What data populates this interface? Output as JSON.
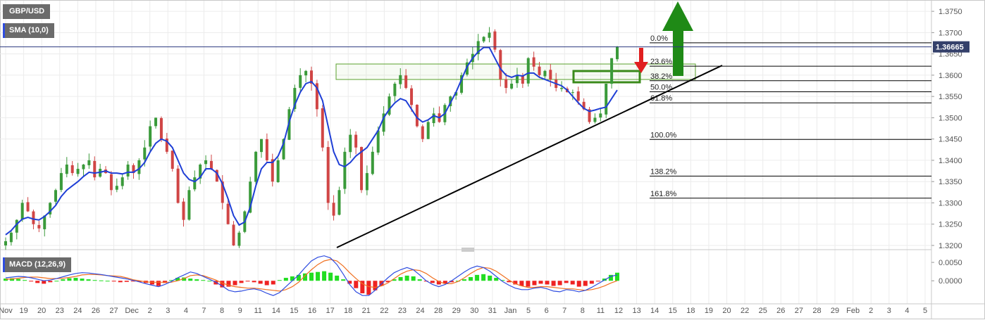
{
  "header": {
    "symbol": "GBP/USD",
    "indicator": "SMA (10,0)",
    "macd_label": "MACD (12,26,9)",
    "current_price": "1.36665"
  },
  "colors": {
    "sma": "#1f3fd6",
    "candle_up": "#3a9a3a",
    "candle_down": "#d04545",
    "trendline": "#000000",
    "zone": "#5aa02c",
    "arrow_up": "#1f8a16",
    "arrow_down": "#e01f1f",
    "macd_fast": "#2f4de0",
    "macd_slow": "#f07020",
    "hist_pos": "#22dd22",
    "hist_neg": "#ee2222"
  },
  "chart_data": {
    "type": "candlestick",
    "instrument": "GBP/USD",
    "y_ticks": [
      "1.3750",
      "1.3700",
      "1.3650",
      "1.3600",
      "1.3550",
      "1.3500",
      "1.3450",
      "1.3400",
      "1.3350",
      "1.3300",
      "1.3250",
      "1.3200"
    ],
    "ylim": [
      1.3195,
      1.377
    ],
    "x_ticks": [
      "Nov",
      "19",
      "20",
      "23",
      "24",
      "26",
      "27",
      "Dec",
      "2",
      "3",
      "4",
      "7",
      "8",
      "9",
      "11",
      "14",
      "15",
      "16",
      "17",
      "18",
      "21",
      "22",
      "23",
      "24",
      "28",
      "29",
      "30",
      "31",
      "Jan",
      "5",
      "6",
      "7",
      "8",
      "11",
      "12",
      "13",
      "14",
      "15",
      "18",
      "19",
      "20",
      "22",
      "25",
      "26",
      "27",
      "28",
      "29",
      "Feb",
      "2",
      "3",
      "4",
      "5"
    ],
    "current_price": 1.36665,
    "fibonacci": [
      {
        "label": "0.0%",
        "price": 1.3676
      },
      {
        "label": "23.6%",
        "price": 1.3621
      },
      {
        "label": "38.2%",
        "price": 1.3587
      },
      {
        "label": "50.0%",
        "price": 1.3561
      },
      {
        "label": "61.8%",
        "price": 1.3535
      },
      {
        "label": "100.0%",
        "price": 1.3449
      },
      {
        "label": "138.2%",
        "price": 1.3363
      },
      {
        "label": "161.8%",
        "price": 1.3311
      }
    ],
    "close_path": [
      1.321,
      1.323,
      1.326,
      1.33,
      1.328,
      1.325,
      1.324,
      1.327,
      1.33,
      1.333,
      1.337,
      1.339,
      1.337,
      1.338,
      1.339,
      1.34,
      1.336,
      1.338,
      1.337,
      1.333,
      1.334,
      1.336,
      1.339,
      1.337,
      1.34,
      1.343,
      1.348,
      1.35,
      1.345,
      1.342,
      1.338,
      1.33,
      1.326,
      1.333,
      1.336,
      1.339,
      1.34,
      1.338,
      1.335,
      1.33,
      1.325,
      1.32,
      1.323,
      1.328,
      1.335,
      1.342,
      1.345,
      1.34,
      1.335,
      1.34,
      1.345,
      1.352,
      1.357,
      1.36,
      1.361,
      1.358,
      1.352,
      1.343,
      1.33,
      1.327,
      1.333,
      1.342,
      1.346,
      1.343,
      1.333,
      1.337,
      1.342,
      1.347,
      1.351,
      1.355,
      1.358,
      1.36,
      1.357,
      1.353,
      1.348,
      1.345,
      1.349,
      1.351,
      1.349,
      1.353,
      1.355,
      1.356,
      1.36,
      1.363,
      1.365,
      1.368,
      1.369,
      1.37,
      1.366,
      1.359,
      1.357,
      1.358,
      1.36,
      1.358,
      1.364,
      1.362,
      1.36,
      1.361,
      1.359,
      1.357,
      1.357,
      1.356,
      1.356,
      1.354,
      1.352,
      1.349,
      1.35,
      1.351,
      1.358,
      1.364,
      1.3667
    ],
    "sma_path": [
      1.3225,
      1.3235,
      1.325,
      1.3262,
      1.3266,
      1.3262,
      1.326,
      1.3268,
      1.328,
      1.3294,
      1.3315,
      1.333,
      1.334,
      1.335,
      1.3362,
      1.3372,
      1.337,
      1.3372,
      1.3375,
      1.337,
      1.337,
      1.3368,
      1.3372,
      1.3372,
      1.338,
      1.3395,
      1.342,
      1.344,
      1.345,
      1.3445,
      1.343,
      1.34,
      1.337,
      1.3355,
      1.335,
      1.336,
      1.338,
      1.338,
      1.337,
      1.3345,
      1.331,
      1.327,
      1.3248,
      1.3255,
      1.329,
      1.334,
      1.338,
      1.3395,
      1.3395,
      1.341,
      1.344,
      1.349,
      1.353,
      1.356,
      1.358,
      1.3585,
      1.357,
      1.354,
      1.348,
      1.342,
      1.339,
      1.3385,
      1.3395,
      1.341,
      1.342,
      1.343,
      1.345,
      1.347,
      1.35,
      1.352,
      1.3535,
      1.3545,
      1.354,
      1.352,
      1.35,
      1.349,
      1.3495,
      1.3505,
      1.35,
      1.351,
      1.3535,
      1.356,
      1.359,
      1.362,
      1.364,
      1.3655,
      1.3665,
      1.3665,
      1.364,
      1.3615,
      1.36,
      1.3595,
      1.36,
      1.3598,
      1.3605,
      1.3605,
      1.3595,
      1.359,
      1.3585,
      1.358,
      1.3575,
      1.3565,
      1.355,
      1.3535,
      1.3522,
      1.3515,
      1.3518,
      1.3522,
      1.3525,
      1.3545,
      1.3565
    ],
    "macd_ticks": [
      "0.0050",
      "0.0000"
    ],
    "macd_ylim": [
      -0.0055,
      0.0075
    ],
    "macd_hist": [
      0.0006,
      0.0007,
      0.0005,
      0.0002,
      -0.0002,
      -0.0006,
      -0.0008,
      -0.0004,
      0.0,
      0.0004,
      0.0007,
      0.0008,
      0.0006,
      0.0004,
      0.0002,
      0.0001,
      0.0,
      -0.0002,
      -0.0004,
      -0.0003,
      -0.0002,
      -0.0003,
      -0.0006,
      -0.001,
      -0.0014,
      -0.0006,
      0.0002,
      0.0008,
      0.0009,
      0.0006,
      0.0004,
      0.0002,
      0.0,
      -0.001,
      -0.0018,
      -0.0016,
      -0.0012,
      -0.0006,
      -0.0002,
      -0.0004,
      -0.0008,
      -0.0012,
      -0.001,
      0.0002,
      0.0008,
      0.0012,
      0.0016,
      0.002,
      0.0022,
      0.0024,
      0.0026,
      0.0022,
      0.0014,
      0.0004,
      -0.0008,
      -0.002,
      -0.0034,
      -0.0038,
      -0.0026,
      -0.0014,
      -0.0004,
      0.0004,
      0.001,
      0.0014,
      0.0012,
      0.0004,
      -0.0002,
      -0.0006,
      -0.001,
      -0.0008,
      -0.0004,
      0.0,
      0.0004,
      0.001,
      0.0016,
      0.0018,
      0.0014,
      0.0008,
      0.0002,
      -0.0004,
      -0.001,
      -0.0014,
      -0.0016,
      -0.0012,
      -0.0008,
      -0.001,
      -0.0014,
      -0.0012,
      -0.0006,
      -0.001,
      -0.0016,
      -0.0014,
      -0.0008,
      -0.0002,
      0.0006,
      0.0016,
      0.0022
    ],
    "macd_fast": [
      0.0008,
      0.001,
      0.0012,
      0.0011,
      0.0008,
      0.0004,
      0.0,
      0.0002,
      0.0006,
      0.0011,
      0.0016,
      0.002,
      0.0022,
      0.0021,
      0.0019,
      0.0017,
      0.0014,
      0.0011,
      0.0008,
      0.0005,
      0.0001,
      -0.0003,
      -0.0008,
      -0.0012,
      -0.0016,
      -0.001,
      -0.0002,
      0.0008,
      0.0016,
      0.0024,
      0.002,
      0.0012,
      0.0004,
      -0.0004,
      -0.0014,
      -0.0026,
      -0.003,
      -0.0028,
      -0.0024,
      -0.0022,
      -0.0026,
      -0.0034,
      -0.004,
      -0.0032,
      -0.0016,
      0.0,
      0.0016,
      0.0036,
      0.0054,
      0.0064,
      0.0068,
      0.0062,
      0.0044,
      0.0018,
      -0.001,
      -0.003,
      -0.004,
      -0.004,
      -0.0026,
      -0.0008,
      0.0008,
      0.0022,
      0.003,
      0.0036,
      0.003,
      0.0016,
      0.0,
      -0.001,
      -0.0016,
      -0.001,
      0.0,
      0.0012,
      0.0024,
      0.0034,
      0.004,
      0.0036,
      0.0026,
      0.0012,
      -0.0002,
      -0.0012,
      -0.002,
      -0.0024,
      -0.0024,
      -0.002,
      -0.0018,
      -0.0022,
      -0.0028,
      -0.003,
      -0.0024,
      -0.0026,
      -0.003,
      -0.0026,
      -0.0018,
      -0.0008,
      0.0002,
      0.0012,
      0.0016
    ],
    "macd_slow": [
      0.0004,
      0.0005,
      0.0007,
      0.0009,
      0.001,
      0.001,
      0.0008,
      0.0006,
      0.0006,
      0.0007,
      0.0009,
      0.0012,
      0.0016,
      0.0017,
      0.0017,
      0.0016,
      0.0014,
      0.0013,
      0.0012,
      0.0008,
      0.0003,
      0.0,
      -0.0003,
      -0.0004,
      -0.0004,
      -0.0004,
      -0.0004,
      0.0,
      0.0006,
      0.0014,
      0.0016,
      0.0014,
      0.0008,
      0.0002,
      -0.0006,
      -0.0012,
      -0.0016,
      -0.0018,
      -0.002,
      -0.002,
      -0.0022,
      -0.0024,
      -0.0026,
      -0.0028,
      -0.0024,
      -0.0016,
      -0.0004,
      0.0014,
      0.003,
      0.0044,
      0.0054,
      0.0058,
      0.0054,
      0.004,
      0.0022,
      0.0006,
      -0.0008,
      -0.0016,
      -0.0018,
      -0.0014,
      -0.0006,
      0.0006,
      0.0018,
      0.0026,
      0.003,
      0.0028,
      0.002,
      0.0008,
      -0.0002,
      -0.0008,
      -0.0008,
      -0.0002,
      0.0008,
      0.002,
      0.003,
      0.0036,
      0.0034,
      0.0026,
      0.0014,
      0.0002,
      -0.0008,
      -0.0014,
      -0.0018,
      -0.0018,
      -0.0016,
      -0.0016,
      -0.0018,
      -0.002,
      -0.0022,
      -0.0022,
      -0.0024,
      -0.0026,
      -0.0024,
      -0.002,
      -0.0014,
      -0.0006,
      0.0
    ]
  }
}
